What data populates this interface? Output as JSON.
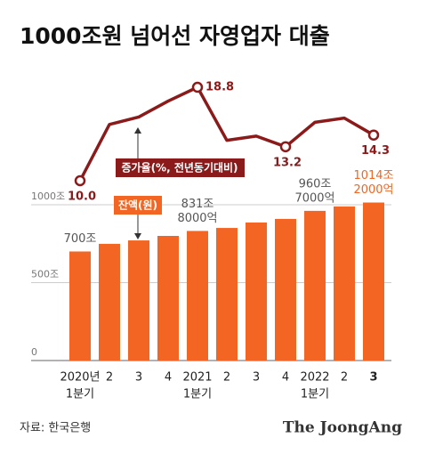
{
  "chart_data": {
    "type": "bar",
    "title": "1000조원 넘어선 자영업자 대출",
    "categories": [
      [
        "2020년",
        "1분기"
      ],
      "2",
      "3",
      "4",
      [
        "2021",
        "1분기"
      ],
      "2",
      "3",
      "4",
      [
        "2022",
        "1분기"
      ],
      "2",
      "3"
    ],
    "series": [
      {
        "name": "잔액(원)",
        "type": "bar",
        "color": "#f26522",
        "values": [
          700,
          749,
          771,
          800,
          831.8,
          851,
          886,
          909,
          960.7,
          989,
          1014.2
        ],
        "value_labels": [
          [
            "700조"
          ],
          null,
          null,
          null,
          [
            "831조",
            "8000억"
          ],
          null,
          null,
          null,
          [
            "960조",
            "7000억"
          ],
          null,
          [
            "1014조",
            "2000억"
          ]
        ]
      },
      {
        "name": "증가율(%, 전년동기대비)",
        "type": "line",
        "axis": "y2",
        "color": "#8b1a1a",
        "values": [
          10.0,
          15.3,
          16.0,
          17.5,
          18.8,
          13.8,
          14.2,
          13.2,
          15.5,
          15.9,
          14.3
        ],
        "value_labels": [
          "10.0",
          null,
          null,
          null,
          "18.8",
          null,
          null,
          "13.2",
          null,
          null,
          "14.3"
        ]
      }
    ],
    "ylim": [
      0,
      1100
    ],
    "yticks": [
      0,
      {
        "value": 500,
        "label": "500조"
      },
      {
        "value": 1000,
        "label": "1000조"
      }
    ],
    "y2lim": [
      0,
      20
    ],
    "grid": true,
    "source": "자료: 한국은행",
    "logo": "The JoongAng"
  }
}
